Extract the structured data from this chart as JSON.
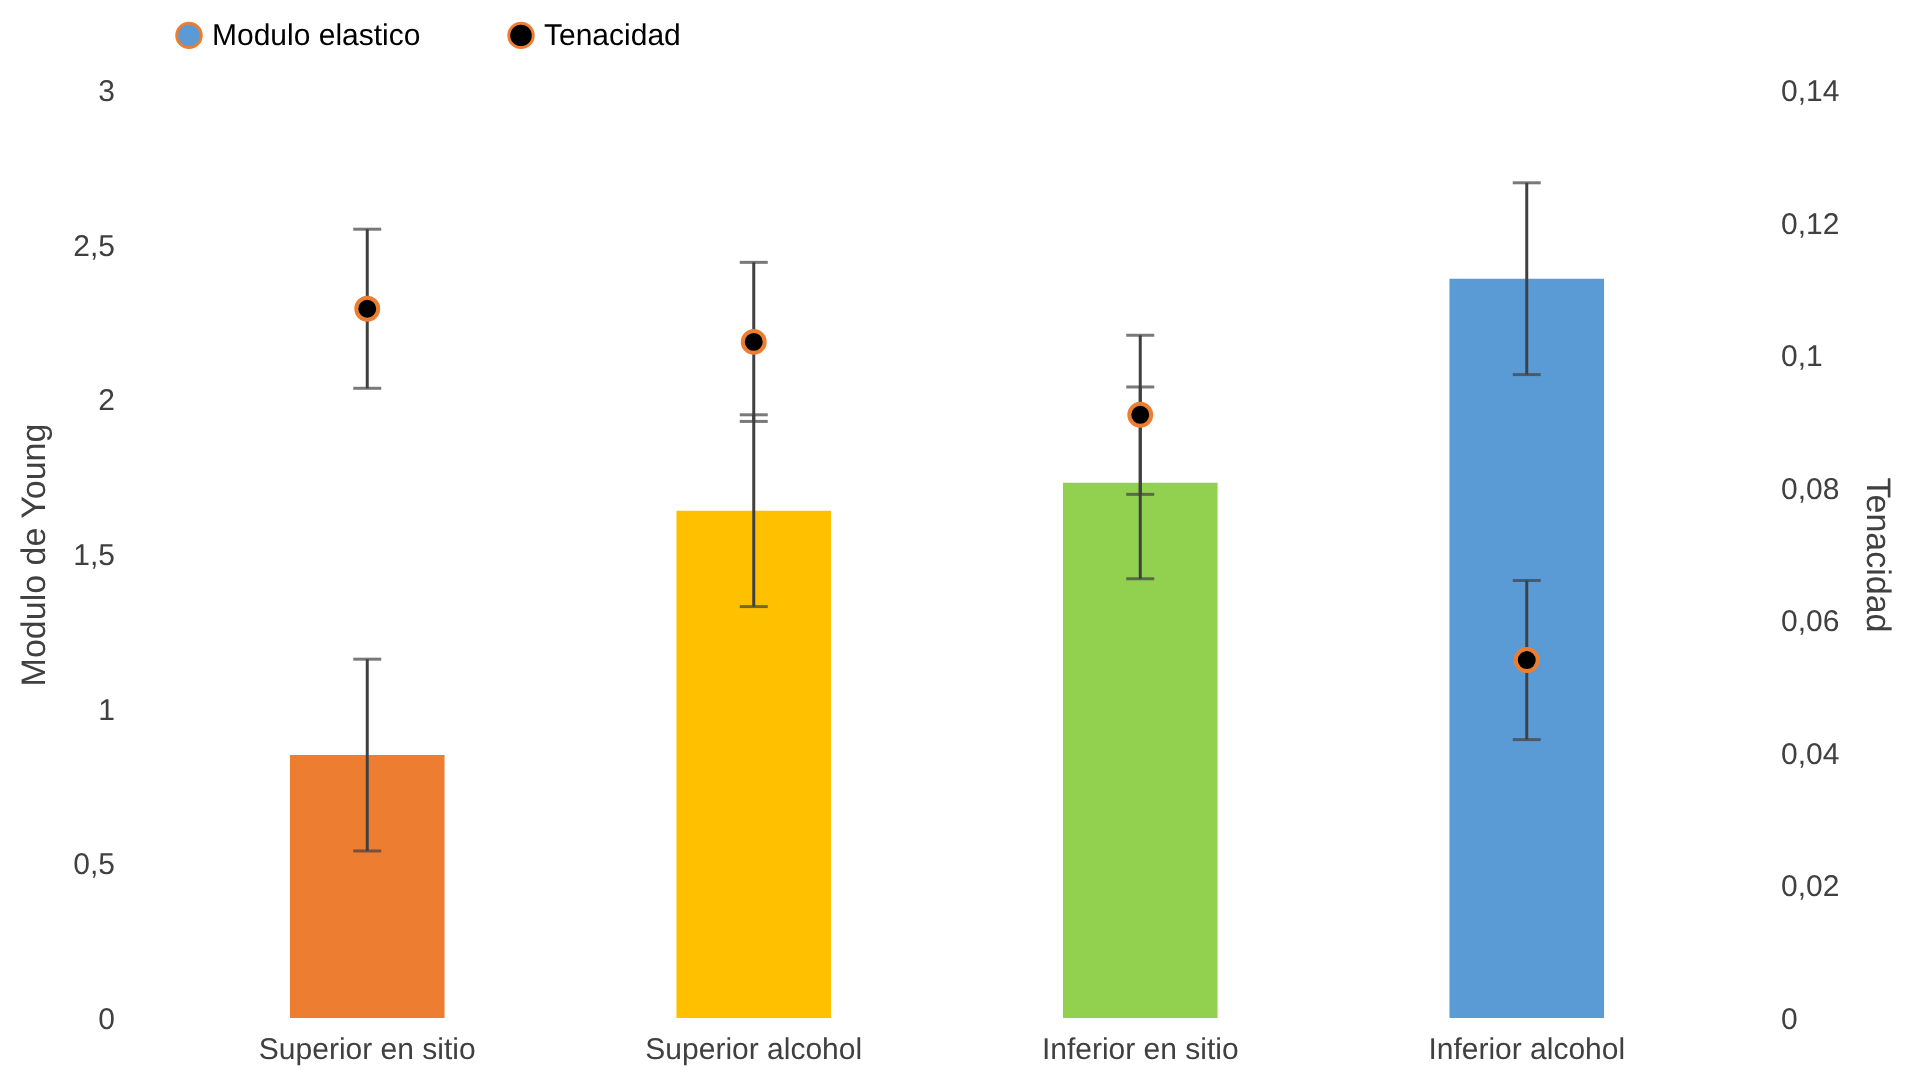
{
  "chart_data": {
    "type": "bar",
    "categories": [
      "Superior en sitio",
      "Superior alcohol",
      "Inferior en sitio",
      "Inferior alcohol"
    ],
    "ylabel": "Modulo de Young",
    "y2label": "Tenacidad",
    "series": [
      {
        "name": "Modulo elastico",
        "color": "#5b9bd5",
        "colors": [
          "#ed7d31",
          "#ffc000",
          "#92d050",
          "#5b9bd5"
        ],
        "values": [
          0.85,
          1.64,
          1.73,
          2.39
        ],
        "errors": [
          0.31,
          0.31,
          0.31,
          0.31
        ]
      },
      {
        "name": "Tenacidad",
        "type": "scatter",
        "axis": "y2",
        "color": "#000000",
        "marker": "circle",
        "values": [
          0.107,
          0.102,
          0.091,
          0.054
        ],
        "errors": [
          0.012,
          0.012,
          0.012,
          0.012
        ]
      }
    ],
    "ylim": [
      0,
      3
    ],
    "yticks": [
      0,
      {
        "value": 0.5,
        "label": "0,5"
      },
      1,
      {
        "value": 1.5,
        "label": "1,5"
      },
      2,
      {
        "value": 2.5,
        "label": "2,5"
      },
      3
    ],
    "y2lim": [
      0,
      0.14
    ],
    "y2ticks": [
      0,
      {
        "value": 0.02,
        "label": "0,02"
      },
      {
        "value": 0.04,
        "label": "0,04"
      },
      {
        "value": 0.06,
        "label": "0,06"
      },
      {
        "value": 0.08,
        "label": "0,08"
      },
      {
        "value": 0.1,
        "label": "0,1"
      },
      {
        "value": 0.12,
        "label": "0,12"
      },
      {
        "value": 0.14,
        "label": "0,14"
      }
    ],
    "legend": "top",
    "grid": false
  }
}
